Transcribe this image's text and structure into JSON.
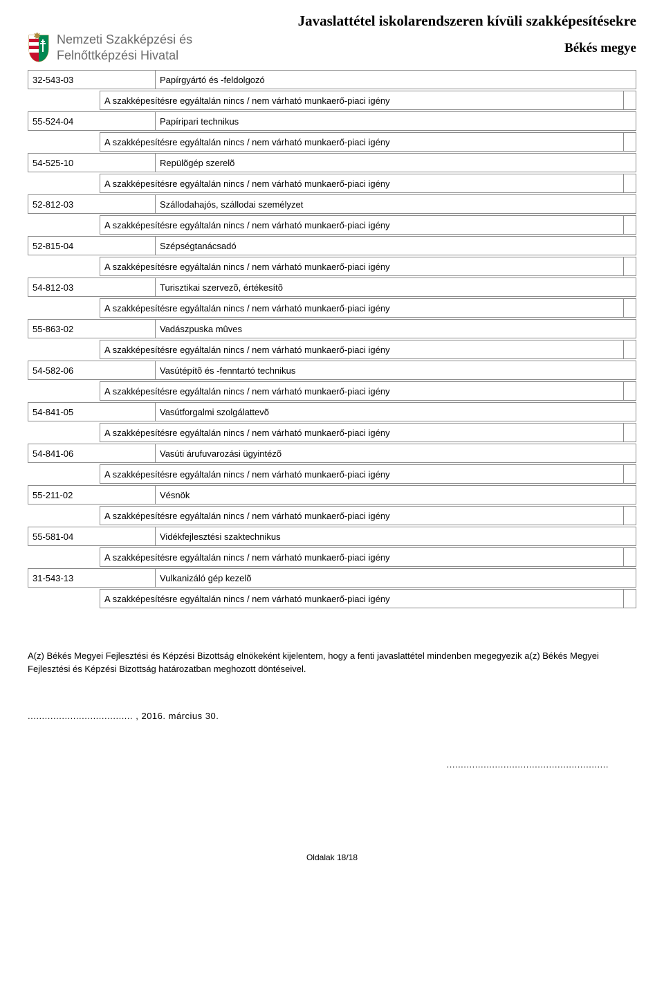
{
  "header": {
    "org_line1": "Nemzeti Szakképzési és",
    "org_line2": "Felnőttképzési Hivatal",
    "doc_title": "Javaslattétel iskolarendszeren kívüli szakképesítésekre",
    "doc_subtitle": "Békés megye"
  },
  "note_text": "A szakképesítésre egyáltalán nincs / nem várható munkaerő-piaci igény",
  "entries": [
    {
      "code": "32-543-03",
      "name": "Papírgyártó és -feldolgozó"
    },
    {
      "code": "55-524-04",
      "name": "Papíripari technikus"
    },
    {
      "code": "54-525-10",
      "name": "Repülõgép szerelõ"
    },
    {
      "code": "52-812-03",
      "name": "Szállodahajós, szállodai személyzet"
    },
    {
      "code": "52-815-04",
      "name": "Szépségtanácsadó"
    },
    {
      "code": "54-812-03",
      "name": "Turisztikai szervezõ, értékesítõ"
    },
    {
      "code": "55-863-02",
      "name": "Vadászpuska mûves"
    },
    {
      "code": "54-582-06",
      "name": "Vasútépítõ és -fenntartó technikus"
    },
    {
      "code": "54-841-05",
      "name": "Vasútforgalmi szolgálattevõ"
    },
    {
      "code": "54-841-06",
      "name": "Vasúti árufuvarozási ügyintézõ"
    },
    {
      "code": "55-211-02",
      "name": "Vésnök"
    },
    {
      "code": "55-581-04",
      "name": "Vidékfejlesztési szaktechnikus"
    },
    {
      "code": "31-543-13",
      "name": "Vulkanizáló gép kezelõ"
    }
  ],
  "declaration": "A(z) Békés Megyei Fejlesztési és Képzési Bizottság elnökeként kijelentem, hogy a fenti javaslattétel mindenben megegyezik a(z) Békés Megyei Fejlesztési és Képzési Bizottság határozatban meghozott döntéseivel.",
  "date_line": "..................................... , 2016. március 30.",
  "sig_line": ".........................................................",
  "footer": "Oldalak 18/18",
  "colors": {
    "border": "#8a8a8a",
    "org_text": "#6b6b6b",
    "text": "#000000",
    "background": "#ffffff"
  }
}
